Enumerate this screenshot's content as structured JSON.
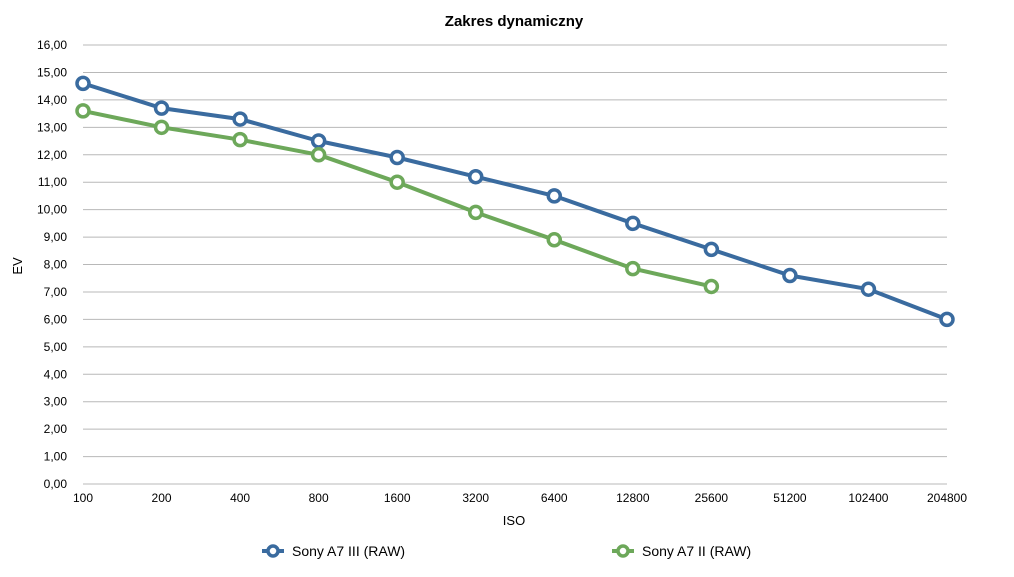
{
  "chart_data": {
    "type": "line",
    "title": "Zakres dynamiczny",
    "xlabel": "ISO",
    "ylabel": "EV",
    "categories": [
      "100",
      "200",
      "400",
      "800",
      "1600",
      "3200",
      "6400",
      "12800",
      "25600",
      "51200",
      "102400",
      "204800"
    ],
    "ylim": [
      0,
      16
    ],
    "ytick_step": 1,
    "ytick_labels": [
      "0,00",
      "1,00",
      "2,00",
      "3,00",
      "4,00",
      "5,00",
      "6,00",
      "7,00",
      "8,00",
      "9,00",
      "10,00",
      "11,00",
      "12,00",
      "13,00",
      "14,00",
      "15,00",
      "16,00"
    ],
    "grid": true,
    "legend_position": "bottom",
    "series": [
      {
        "name": "Sony A7 III (RAW)",
        "color": "#3a6b9f",
        "values": [
          14.6,
          13.7,
          13.3,
          12.5,
          11.9,
          11.2,
          10.5,
          9.5,
          8.55,
          7.6,
          7.1,
          6.0
        ]
      },
      {
        "name": "Sony A7 II (RAW)",
        "color": "#6da85a",
        "values": [
          13.6,
          13.0,
          12.55,
          12.0,
          11.0,
          9.9,
          8.9,
          7.85,
          7.2,
          null,
          null,
          null
        ]
      }
    ]
  }
}
